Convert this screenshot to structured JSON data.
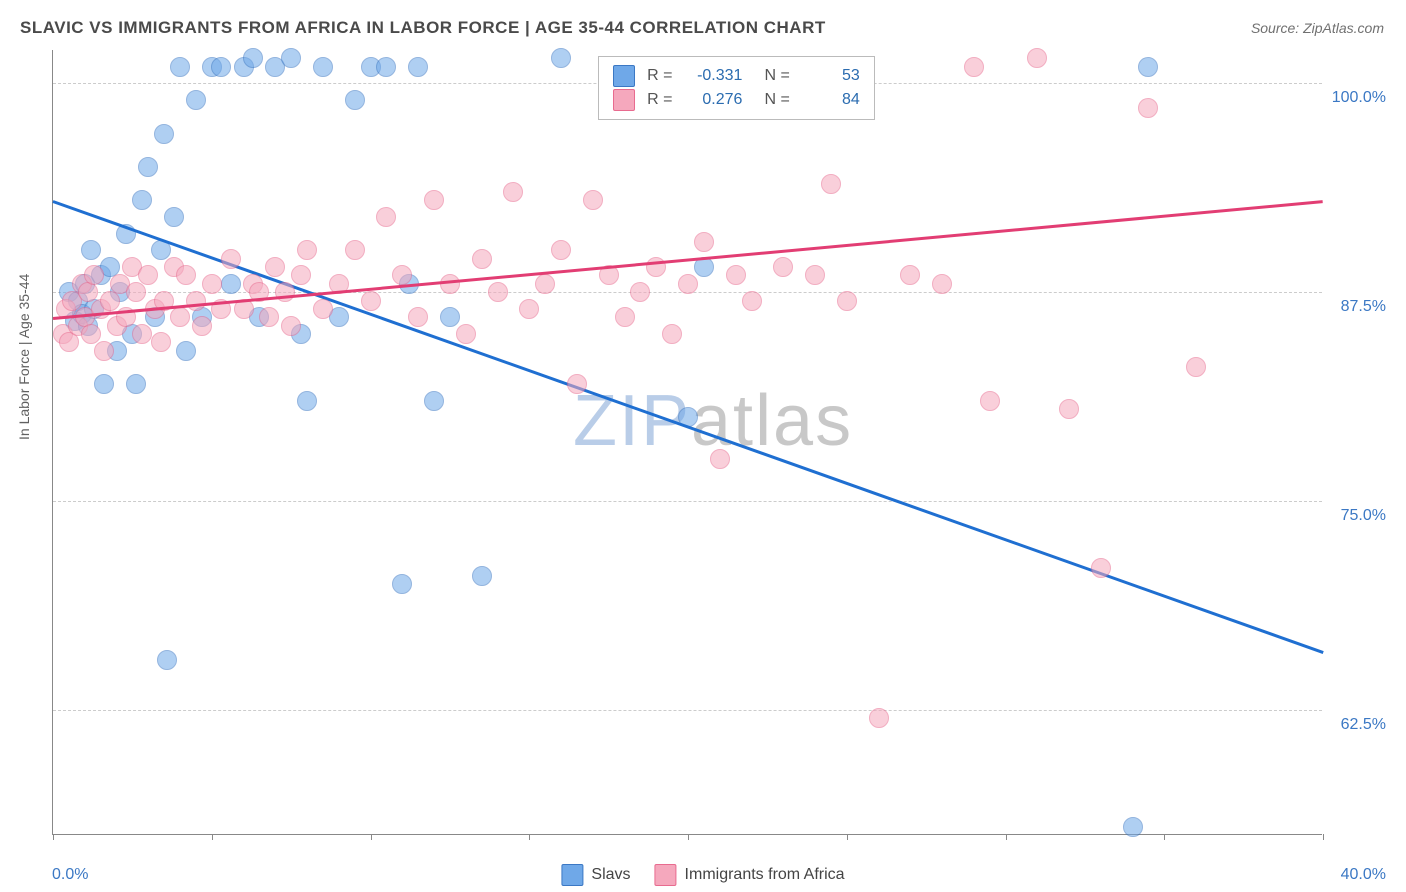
{
  "title": "SLAVIC VS IMMIGRANTS FROM AFRICA IN LABOR FORCE | AGE 35-44 CORRELATION CHART",
  "source": "Source: ZipAtlas.com",
  "ylabel": "In Labor Force | Age 35-44",
  "watermark": {
    "pre": "ZIP",
    "post": "atlas",
    "color_pre": "#b9cde8",
    "color_post": "#c8c8c8"
  },
  "chart": {
    "type": "scatter",
    "background_color": "#ffffff",
    "grid_color": "#cccccc",
    "xlim": [
      0,
      40
    ],
    "ylim": [
      55,
      102
    ],
    "xticks": [
      0,
      5,
      10,
      15,
      20,
      25,
      30,
      35,
      40
    ],
    "xtick_labels": {
      "0": "0.0%",
      "40": "40.0%"
    },
    "yticks": [
      62.5,
      75.0,
      87.5,
      100.0
    ],
    "ytick_labels": [
      "62.5%",
      "75.0%",
      "87.5%",
      "100.0%"
    ],
    "marker_radius": 10,
    "marker_opacity": 0.55,
    "line_width": 2.5,
    "series": [
      {
        "name": "Slavs",
        "color": "#6fa8e8",
        "stroke": "#3b78c4",
        "line_color": "#1f6fd1",
        "R": "-0.331",
        "N": "53",
        "trend": {
          "x1": 0,
          "y1": 93.0,
          "x2": 40,
          "y2": 66.0
        },
        "points": [
          [
            0.5,
            87.5
          ],
          [
            0.7,
            85.8
          ],
          [
            0.8,
            87.0
          ],
          [
            0.9,
            86.2
          ],
          [
            1.0,
            88.0
          ],
          [
            1.1,
            85.5
          ],
          [
            1.2,
            90.0
          ],
          [
            1.3,
            86.5
          ],
          [
            1.5,
            88.5
          ],
          [
            1.6,
            82.0
          ],
          [
            1.8,
            89.0
          ],
          [
            2.0,
            84.0
          ],
          [
            2.1,
            87.5
          ],
          [
            2.3,
            91.0
          ],
          [
            2.5,
            85.0
          ],
          [
            2.6,
            82.0
          ],
          [
            2.8,
            93.0
          ],
          [
            3.0,
            95.0
          ],
          [
            3.2,
            86.0
          ],
          [
            3.4,
            90.0
          ],
          [
            3.5,
            97.0
          ],
          [
            3.6,
            65.5
          ],
          [
            3.8,
            92.0
          ],
          [
            4.0,
            101.0
          ],
          [
            4.2,
            84.0
          ],
          [
            4.5,
            99.0
          ],
          [
            4.7,
            86.0
          ],
          [
            5.0,
            101.0
          ],
          [
            5.3,
            101.0
          ],
          [
            5.6,
            88.0
          ],
          [
            6.0,
            101.0
          ],
          [
            6.3,
            101.5
          ],
          [
            6.5,
            86.0
          ],
          [
            7.0,
            101.0
          ],
          [
            7.5,
            101.5
          ],
          [
            7.8,
            85.0
          ],
          [
            8.0,
            81.0
          ],
          [
            8.5,
            101.0
          ],
          [
            9.0,
            86.0
          ],
          [
            9.5,
            99.0
          ],
          [
            10.0,
            101.0
          ],
          [
            10.5,
            101.0
          ],
          [
            11.0,
            70.0
          ],
          [
            11.2,
            88.0
          ],
          [
            11.5,
            101.0
          ],
          [
            12.0,
            81.0
          ],
          [
            12.5,
            86.0
          ],
          [
            13.5,
            70.5
          ],
          [
            16.0,
            101.5
          ],
          [
            20.0,
            80.0
          ],
          [
            20.5,
            89.0
          ],
          [
            34.0,
            55.5
          ],
          [
            34.5,
            101.0
          ]
        ]
      },
      {
        "name": "Immigrants from Africa",
        "color": "#f5a8bd",
        "stroke": "#e86b8f",
        "line_color": "#e23d73",
        "R": "0.276",
        "N": "84",
        "trend": {
          "x1": 0,
          "y1": 86.0,
          "x2": 40,
          "y2": 93.0
        },
        "points": [
          [
            0.3,
            85.0
          ],
          [
            0.4,
            86.5
          ],
          [
            0.5,
            84.5
          ],
          [
            0.6,
            87.0
          ],
          [
            0.8,
            85.5
          ],
          [
            0.9,
            88.0
          ],
          [
            1.0,
            86.0
          ],
          [
            1.1,
            87.5
          ],
          [
            1.2,
            85.0
          ],
          [
            1.3,
            88.5
          ],
          [
            1.5,
            86.5
          ],
          [
            1.6,
            84.0
          ],
          [
            1.8,
            87.0
          ],
          [
            2.0,
            85.5
          ],
          [
            2.1,
            88.0
          ],
          [
            2.3,
            86.0
          ],
          [
            2.5,
            89.0
          ],
          [
            2.6,
            87.5
          ],
          [
            2.8,
            85.0
          ],
          [
            3.0,
            88.5
          ],
          [
            3.2,
            86.5
          ],
          [
            3.4,
            84.5
          ],
          [
            3.5,
            87.0
          ],
          [
            3.8,
            89.0
          ],
          [
            4.0,
            86.0
          ],
          [
            4.2,
            88.5
          ],
          [
            4.5,
            87.0
          ],
          [
            4.7,
            85.5
          ],
          [
            5.0,
            88.0
          ],
          [
            5.3,
            86.5
          ],
          [
            5.6,
            89.5
          ],
          [
            6.0,
            86.5
          ],
          [
            6.3,
            88.0
          ],
          [
            6.5,
            87.5
          ],
          [
            6.8,
            86.0
          ],
          [
            7.0,
            89.0
          ],
          [
            7.3,
            87.5
          ],
          [
            7.5,
            85.5
          ],
          [
            7.8,
            88.5
          ],
          [
            8.0,
            90.0
          ],
          [
            8.5,
            86.5
          ],
          [
            9.0,
            88.0
          ],
          [
            9.5,
            90.0
          ],
          [
            10.0,
            87.0
          ],
          [
            10.5,
            92.0
          ],
          [
            11.0,
            88.5
          ],
          [
            11.5,
            86.0
          ],
          [
            12.0,
            93.0
          ],
          [
            12.5,
            88.0
          ],
          [
            13.0,
            85.0
          ],
          [
            13.5,
            89.5
          ],
          [
            14.0,
            87.5
          ],
          [
            14.5,
            93.5
          ],
          [
            15.0,
            86.5
          ],
          [
            15.5,
            88.0
          ],
          [
            16.0,
            90.0
          ],
          [
            16.5,
            82.0
          ],
          [
            17.0,
            93.0
          ],
          [
            17.5,
            88.5
          ],
          [
            18.0,
            86.0
          ],
          [
            18.5,
            87.5
          ],
          [
            19.0,
            89.0
          ],
          [
            19.5,
            85.0
          ],
          [
            20.0,
            88.0
          ],
          [
            20.5,
            90.5
          ],
          [
            21.0,
            77.5
          ],
          [
            21.5,
            88.5
          ],
          [
            22.0,
            87.0
          ],
          [
            23.0,
            89.0
          ],
          [
            24.0,
            88.5
          ],
          [
            24.5,
            94.0
          ],
          [
            25.0,
            87.0
          ],
          [
            25.5,
            101.0
          ],
          [
            26.0,
            62.0
          ],
          [
            27.0,
            88.5
          ],
          [
            28.0,
            88.0
          ],
          [
            29.5,
            81.0
          ],
          [
            31.0,
            101.5
          ],
          [
            32.0,
            80.5
          ],
          [
            33.0,
            71.0
          ],
          [
            34.5,
            98.5
          ],
          [
            36.0,
            83.0
          ],
          [
            29.0,
            101.0
          ],
          [
            22.5,
            101.0
          ]
        ]
      }
    ]
  },
  "legend_top": {
    "R_label": "R =",
    "N_label": "N ="
  },
  "legend_bottom": [
    "Slavs",
    "Immigrants from Africa"
  ]
}
